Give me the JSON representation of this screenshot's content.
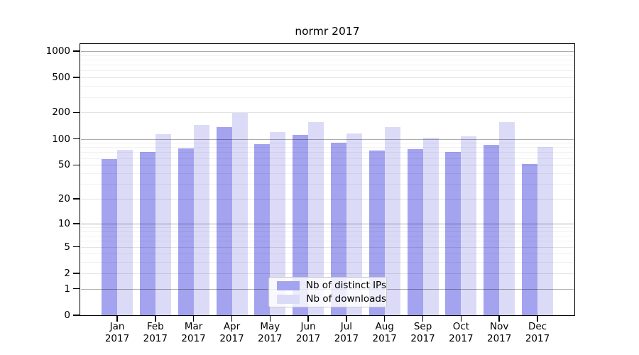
{
  "title": "normr 2017",
  "colors": {
    "distinct_ips_bar": "#a3a3ef",
    "downloads_bar": "#dbdbf8",
    "major_grid": "#ababab",
    "minor_grid": "#efefef",
    "axis": "#000000",
    "legend_border": "#c8c8c8"
  },
  "chart_data": {
    "type": "bar",
    "title": "normr 2017",
    "categories": [
      "Jan",
      "Feb",
      "Mar",
      "Apr",
      "May",
      "Jun",
      "Jul",
      "Aug",
      "Sep",
      "Oct",
      "Nov",
      "Dec"
    ],
    "category_year": "2017",
    "series": [
      {
        "name": "Nb of distinct IPs",
        "color": "#a3a3ef",
        "values": [
          59,
          70,
          78,
          137,
          87,
          110,
          90,
          73,
          76,
          70,
          86,
          51
        ]
      },
      {
        "name": "Nb of downloads",
        "color": "#dbdbf8",
        "values": [
          75,
          112,
          143,
          199,
          120,
          154,
          116,
          135,
          103,
          107,
          154,
          80
        ]
      }
    ],
    "ylabel": "",
    "xlabel": "",
    "yticks": [
      0,
      1,
      2,
      5,
      10,
      20,
      50,
      100,
      200,
      500,
      1000
    ],
    "scale": "log1p",
    "ylim": [
      0,
      1200
    ],
    "grid": "horizontal major and minor, drawn over bars",
    "legend_position": "inside lower center"
  }
}
